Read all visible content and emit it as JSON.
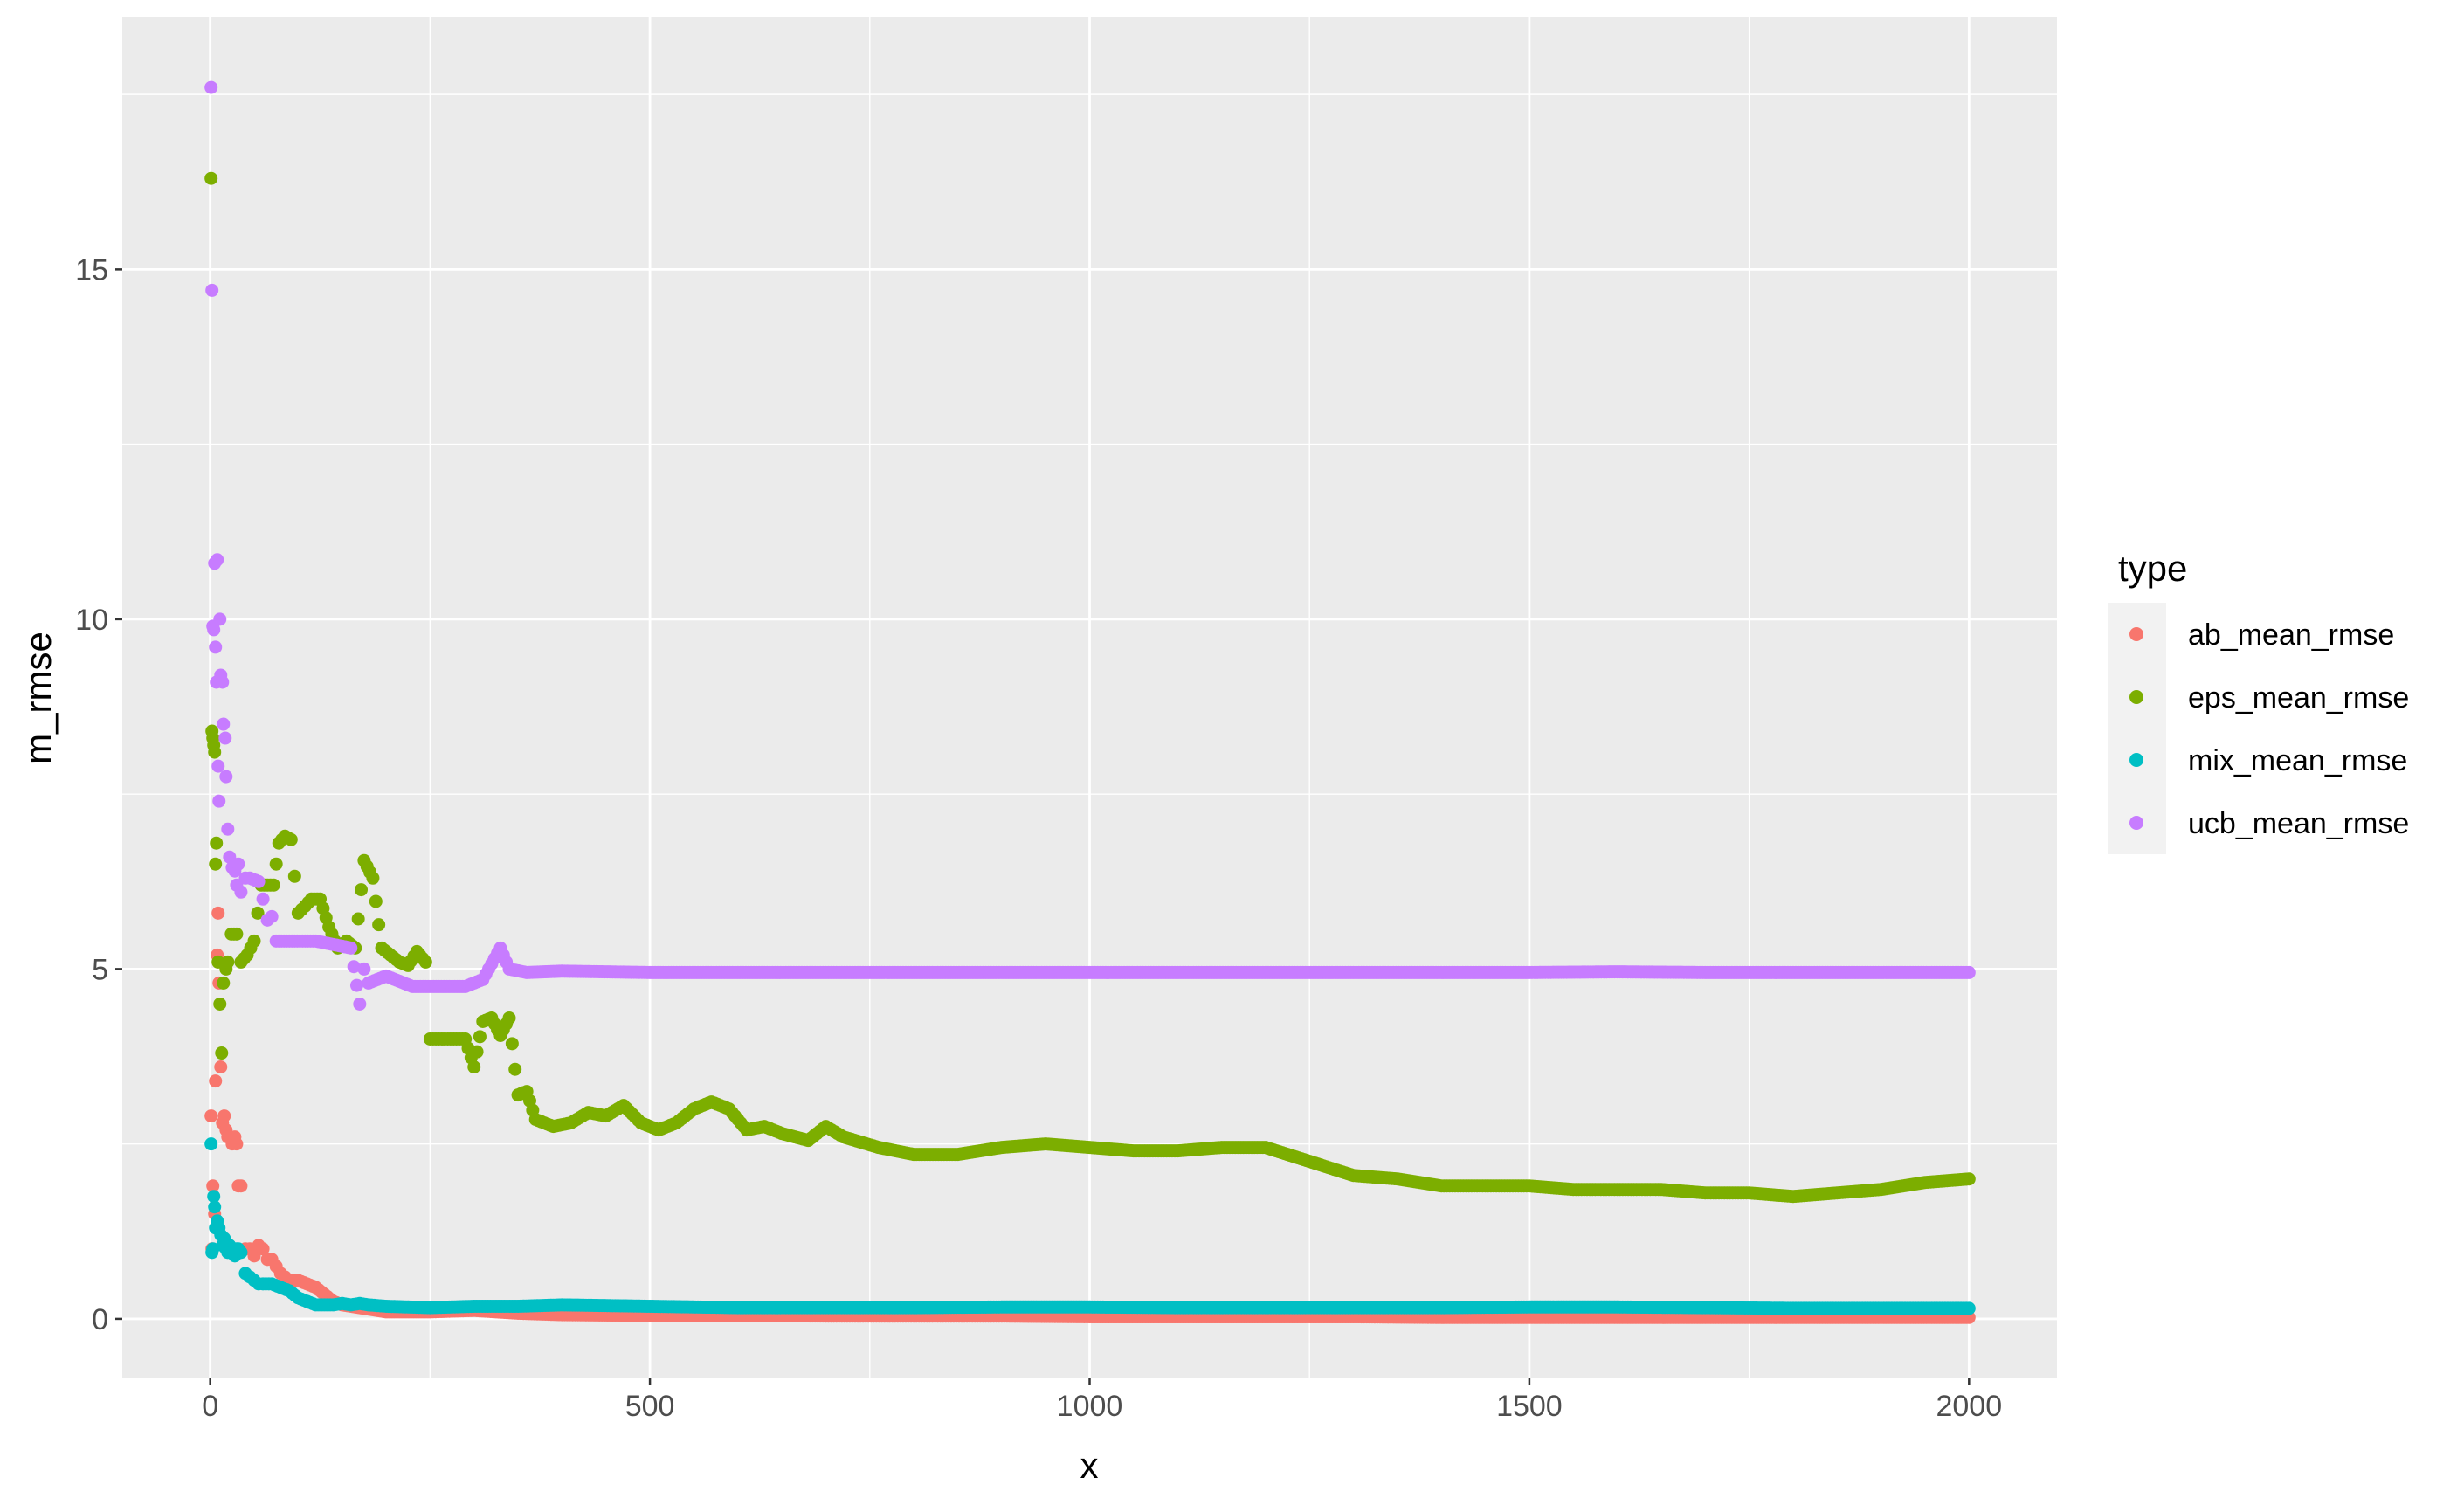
{
  "chart_data": {
    "type": "scatter",
    "title": "",
    "xlabel": "x",
    "ylabel": "m_rmse",
    "xlim": [
      -100,
      2100
    ],
    "ylim": [
      -0.85,
      18.6
    ],
    "x_ticks": [
      0,
      500,
      1000,
      1500,
      2000
    ],
    "x_tick_labels": [
      "0",
      "500",
      "1000",
      "1500",
      "2000"
    ],
    "y_ticks": [
      0,
      5,
      10,
      15
    ],
    "y_tick_labels": [
      "0",
      "5",
      "10",
      "15"
    ],
    "grid": true,
    "background": "#ebebeb",
    "legend": {
      "title": "type",
      "placement": "right",
      "entries": [
        "ab_mean_rmse",
        "eps_mean_rmse",
        "mix_mean_rmse",
        "ucb_mean_rmse"
      ]
    },
    "series": [
      {
        "name": "ab_mean_rmse",
        "color": "#F8766D",
        "points": [
          [
            1,
            2.9
          ],
          [
            2,
            1.0
          ],
          [
            3,
            1.9
          ],
          [
            5,
            1.5
          ],
          [
            6,
            3.4
          ],
          [
            8,
            5.2
          ],
          [
            9,
            5.8
          ],
          [
            10,
            4.8
          ],
          [
            12,
            3.6
          ],
          [
            14,
            2.8
          ],
          [
            16,
            2.9
          ],
          [
            18,
            2.7
          ],
          [
            20,
            2.6
          ],
          [
            22,
            2.6
          ],
          [
            25,
            2.5
          ],
          [
            28,
            2.6
          ],
          [
            30,
            2.5
          ],
          [
            32,
            1.9
          ],
          [
            35,
            1.9
          ],
          [
            40,
            1.0
          ],
          [
            45,
            1.0
          ],
          [
            50,
            0.9
          ],
          [
            55,
            1.05
          ],
          [
            60,
            1.0
          ],
          [
            65,
            0.85
          ],
          [
            70,
            0.85
          ],
          [
            75,
            0.75
          ],
          [
            80,
            0.65
          ],
          [
            85,
            0.6
          ],
          [
            90,
            0.55
          ],
          [
            100,
            0.55
          ],
          [
            110,
            0.5
          ],
          [
            120,
            0.45
          ],
          [
            130,
            0.35
          ],
          [
            140,
            0.25
          ],
          [
            150,
            0.2
          ],
          [
            175,
            0.15
          ],
          [
            200,
            0.1
          ],
          [
            250,
            0.1
          ],
          [
            300,
            0.12
          ],
          [
            350,
            0.08
          ],
          [
            400,
            0.06
          ],
          [
            500,
            0.05
          ],
          [
            600,
            0.05
          ],
          [
            700,
            0.04
          ],
          [
            800,
            0.04
          ],
          [
            900,
            0.04
          ],
          [
            1000,
            0.03
          ],
          [
            1100,
            0.03
          ],
          [
            1200,
            0.03
          ],
          [
            1300,
            0.03
          ],
          [
            1400,
            0.02
          ],
          [
            1500,
            0.02
          ],
          [
            1600,
            0.02
          ],
          [
            1700,
            0.02
          ],
          [
            1800,
            0.02
          ],
          [
            1900,
            0.02
          ],
          [
            2000,
            0.02
          ]
        ]
      },
      {
        "name": "eps_mean_rmse",
        "color": "#7CAE00",
        "points": [
          [
            1,
            16.3
          ],
          [
            2,
            8.4
          ],
          [
            3,
            8.3
          ],
          [
            4,
            8.2
          ],
          [
            5,
            8.1
          ],
          [
            6,
            6.5
          ],
          [
            7,
            6.8
          ],
          [
            9,
            5.1
          ],
          [
            11,
            4.5
          ],
          [
            13,
            3.8
          ],
          [
            15,
            4.8
          ],
          [
            18,
            5.0
          ],
          [
            20,
            5.1
          ],
          [
            24,
            5.5
          ],
          [
            30,
            5.5
          ],
          [
            35,
            5.1
          ],
          [
            42,
            5.2
          ],
          [
            50,
            5.4
          ],
          [
            58,
            6.2
          ],
          [
            65,
            6.2
          ],
          [
            72,
            6.2
          ],
          [
            78,
            6.8
          ],
          [
            85,
            6.9
          ],
          [
            92,
            6.85
          ],
          [
            100,
            5.8
          ],
          [
            108,
            5.9
          ],
          [
            115,
            6.0
          ],
          [
            125,
            6.0
          ],
          [
            135,
            5.6
          ],
          [
            145,
            5.3
          ],
          [
            155,
            5.4
          ],
          [
            165,
            5.3
          ],
          [
            175,
            6.55
          ],
          [
            185,
            6.3
          ],
          [
            195,
            5.3
          ],
          [
            205,
            5.2
          ],
          [
            215,
            5.1
          ],
          [
            225,
            5.05
          ],
          [
            235,
            5.25
          ],
          [
            245,
            5.1
          ],
          [
            250,
            4.0
          ],
          [
            270,
            4.0
          ],
          [
            290,
            4.0
          ],
          [
            300,
            3.6
          ],
          [
            310,
            4.25
          ],
          [
            320,
            4.3
          ],
          [
            330,
            4.05
          ],
          [
            340,
            4.3
          ],
          [
            350,
            3.2
          ],
          [
            360,
            3.25
          ],
          [
            370,
            2.85
          ],
          [
            390,
            2.75
          ],
          [
            410,
            2.8
          ],
          [
            430,
            2.95
          ],
          [
            450,
            2.9
          ],
          [
            470,
            3.05
          ],
          [
            490,
            2.8
          ],
          [
            510,
            2.7
          ],
          [
            530,
            2.8
          ],
          [
            550,
            3.0
          ],
          [
            570,
            3.1
          ],
          [
            590,
            3.0
          ],
          [
            610,
            2.7
          ],
          [
            630,
            2.75
          ],
          [
            650,
            2.65
          ],
          [
            680,
            2.55
          ],
          [
            700,
            2.75
          ],
          [
            720,
            2.6
          ],
          [
            760,
            2.45
          ],
          [
            800,
            2.35
          ],
          [
            850,
            2.35
          ],
          [
            900,
            2.45
          ],
          [
            950,
            2.5
          ],
          [
            1000,
            2.45
          ],
          [
            1050,
            2.4
          ],
          [
            1100,
            2.4
          ],
          [
            1150,
            2.45
          ],
          [
            1200,
            2.45
          ],
          [
            1250,
            2.25
          ],
          [
            1300,
            2.05
          ],
          [
            1350,
            2.0
          ],
          [
            1400,
            1.9
          ],
          [
            1450,
            1.9
          ],
          [
            1500,
            1.9
          ],
          [
            1550,
            1.85
          ],
          [
            1600,
            1.85
          ],
          [
            1650,
            1.85
          ],
          [
            1700,
            1.8
          ],
          [
            1750,
            1.8
          ],
          [
            1800,
            1.75
          ],
          [
            1850,
            1.8
          ],
          [
            1900,
            1.85
          ],
          [
            1950,
            1.95
          ],
          [
            2000,
            2.0
          ]
        ]
      },
      {
        "name": "mix_mean_rmse",
        "color": "#00BFC4",
        "points": [
          [
            1,
            2.5
          ],
          [
            2,
            0.95
          ],
          [
            3,
            1.0
          ],
          [
            4,
            1.75
          ],
          [
            5,
            1.6
          ],
          [
            6,
            1.3
          ],
          [
            8,
            1.4
          ],
          [
            10,
            1.3
          ],
          [
            12,
            1.2
          ],
          [
            14,
            1.05
          ],
          [
            16,
            1.15
          ],
          [
            18,
            1.0
          ],
          [
            20,
            0.95
          ],
          [
            22,
            1.05
          ],
          [
            25,
            0.95
          ],
          [
            28,
            0.9
          ],
          [
            30,
            1.0
          ],
          [
            32,
            1.0
          ],
          [
            35,
            0.95
          ],
          [
            40,
            0.65
          ],
          [
            45,
            0.6
          ],
          [
            50,
            0.55
          ],
          [
            55,
            0.5
          ],
          [
            60,
            0.5
          ],
          [
            70,
            0.5
          ],
          [
            80,
            0.45
          ],
          [
            90,
            0.4
          ],
          [
            100,
            0.3
          ],
          [
            110,
            0.25
          ],
          [
            120,
            0.2
          ],
          [
            130,
            0.2
          ],
          [
            140,
            0.2
          ],
          [
            150,
            0.22
          ],
          [
            160,
            0.2
          ],
          [
            170,
            0.22
          ],
          [
            180,
            0.2
          ],
          [
            200,
            0.18
          ],
          [
            250,
            0.16
          ],
          [
            300,
            0.18
          ],
          [
            350,
            0.18
          ],
          [
            400,
            0.2
          ],
          [
            500,
            0.18
          ],
          [
            600,
            0.16
          ],
          [
            700,
            0.16
          ],
          [
            800,
            0.16
          ],
          [
            900,
            0.17
          ],
          [
            1000,
            0.17
          ],
          [
            1100,
            0.16
          ],
          [
            1200,
            0.16
          ],
          [
            1300,
            0.16
          ],
          [
            1400,
            0.16
          ],
          [
            1500,
            0.17
          ],
          [
            1600,
            0.17
          ],
          [
            1700,
            0.16
          ],
          [
            1800,
            0.15
          ],
          [
            1900,
            0.15
          ],
          [
            2000,
            0.15
          ]
        ]
      },
      {
        "name": "ucb_mean_rmse",
        "color": "#C77CFF",
        "points": [
          [
            1,
            17.6
          ],
          [
            2,
            14.7
          ],
          [
            3,
            9.9
          ],
          [
            4,
            9.85
          ],
          [
            5,
            10.8
          ],
          [
            6,
            9.6
          ],
          [
            7,
            9.1
          ],
          [
            8,
            10.85
          ],
          [
            9,
            7.9
          ],
          [
            10,
            7.4
          ],
          [
            11,
            10.0
          ],
          [
            12,
            9.2
          ],
          [
            14,
            9.1
          ],
          [
            15,
            8.5
          ],
          [
            17,
            8.3
          ],
          [
            18,
            7.75
          ],
          [
            20,
            7.0
          ],
          [
            22,
            6.6
          ],
          [
            25,
            6.45
          ],
          [
            28,
            6.4
          ],
          [
            30,
            6.2
          ],
          [
            32,
            6.5
          ],
          [
            35,
            6.1
          ],
          [
            40,
            6.3
          ],
          [
            45,
            6.3
          ],
          [
            55,
            6.25
          ],
          [
            60,
            6.0
          ],
          [
            65,
            5.7
          ],
          [
            70,
            5.75
          ],
          [
            75,
            5.4
          ],
          [
            90,
            5.4
          ],
          [
            120,
            5.4
          ],
          [
            140,
            5.35
          ],
          [
            160,
            5.3
          ],
          [
            170,
            4.5
          ],
          [
            175,
            5.0
          ],
          [
            180,
            4.8
          ],
          [
            200,
            4.9
          ],
          [
            230,
            4.75
          ],
          [
            260,
            4.75
          ],
          [
            290,
            4.75
          ],
          [
            310,
            4.85
          ],
          [
            330,
            5.3
          ],
          [
            340,
            5.0
          ],
          [
            360,
            4.95
          ],
          [
            400,
            4.97
          ],
          [
            500,
            4.95
          ],
          [
            600,
            4.95
          ],
          [
            700,
            4.95
          ],
          [
            800,
            4.95
          ],
          [
            900,
            4.95
          ],
          [
            1000,
            4.95
          ],
          [
            1100,
            4.95
          ],
          [
            1200,
            4.95
          ],
          [
            1300,
            4.95
          ],
          [
            1400,
            4.95
          ],
          [
            1500,
            4.95
          ],
          [
            1600,
            4.96
          ],
          [
            1700,
            4.95
          ],
          [
            1800,
            4.95
          ],
          [
            1900,
            4.95
          ],
          [
            2000,
            4.95
          ]
        ]
      }
    ]
  }
}
